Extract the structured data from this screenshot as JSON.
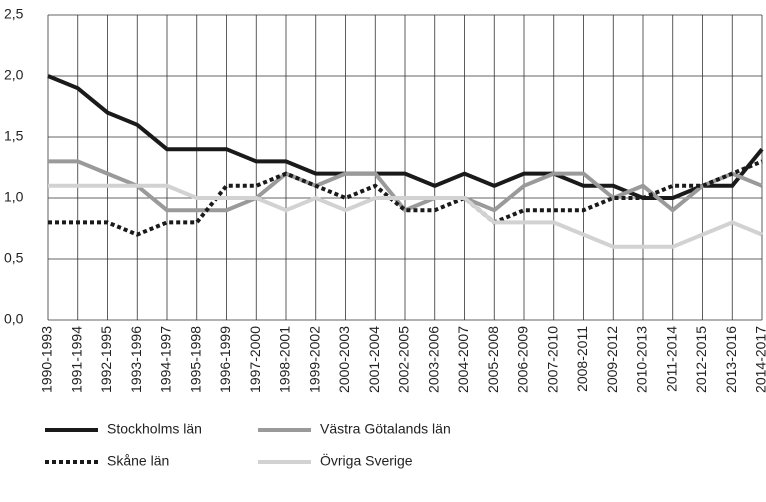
{
  "chart_data": {
    "type": "line",
    "categories": [
      "1990-1993",
      "1991-1994",
      "1992-1995",
      "1993-1996",
      "1994-1997",
      "1995-1998",
      "1996-1999",
      "1997-2000",
      "1998-2001",
      "1999-2002",
      "2000-2003",
      "2001-2004",
      "2002-2005",
      "2003-2006",
      "2004-2007",
      "2005-2008",
      "2006-2009",
      "2007-2010",
      "2008-2011",
      "2009-2012",
      "2010-2013",
      "2011-2014",
      "2012-2015",
      "2013-2016",
      "2014-2017"
    ],
    "series": [
      {
        "name": "Stockholms län",
        "color": "#1a1a1a",
        "dashed": false,
        "values": [
          2.0,
          1.9,
          1.7,
          1.6,
          1.4,
          1.4,
          1.4,
          1.3,
          1.3,
          1.2,
          1.2,
          1.2,
          1.2,
          1.1,
          1.2,
          1.1,
          1.2,
          1.2,
          1.1,
          1.1,
          1.0,
          1.0,
          1.1,
          1.1,
          1.4
        ]
      },
      {
        "name": "Västra Götalands län",
        "color": "#9a9a9a",
        "dashed": false,
        "values": [
          1.3,
          1.3,
          1.2,
          1.1,
          0.9,
          0.9,
          0.9,
          1.0,
          1.2,
          1.1,
          1.2,
          1.2,
          0.9,
          1.0,
          1.0,
          0.9,
          1.1,
          1.2,
          1.2,
          1.0,
          1.1,
          0.9,
          1.1,
          1.2,
          1.1
        ]
      },
      {
        "name": "Skåne län",
        "color": "#1a1a1a",
        "dashed": true,
        "values": [
          0.8,
          0.8,
          0.8,
          0.7,
          0.8,
          0.8,
          1.1,
          1.1,
          1.2,
          1.1,
          1.0,
          1.1,
          0.9,
          0.9,
          1.0,
          0.8,
          0.9,
          0.9,
          0.9,
          1.0,
          1.0,
          1.1,
          1.1,
          1.2,
          1.3
        ]
      },
      {
        "name": "Övriga Sverige",
        "color": "#d2d2d2",
        "dashed": false,
        "values": [
          1.1,
          1.1,
          1.1,
          1.1,
          1.1,
          1.0,
          1.0,
          1.0,
          0.9,
          1.0,
          0.9,
          1.0,
          1.0,
          1.0,
          1.0,
          0.8,
          0.8,
          0.8,
          0.7,
          0.6,
          0.6,
          0.6,
          0.7,
          0.8,
          0.7
        ]
      }
    ],
    "ylim": [
      0,
      2.5
    ],
    "yticks": [
      {
        "value": 0,
        "label": "0,0"
      },
      {
        "value": 0.5,
        "label": "0,5"
      },
      {
        "value": 1,
        "label": "1,0"
      },
      {
        "value": 1.5,
        "label": "1,5"
      },
      {
        "value": 2,
        "label": "2,0"
      },
      {
        "value": 2.5,
        "label": "2,5"
      }
    ],
    "grid": true,
    "legend": "bottom"
  }
}
